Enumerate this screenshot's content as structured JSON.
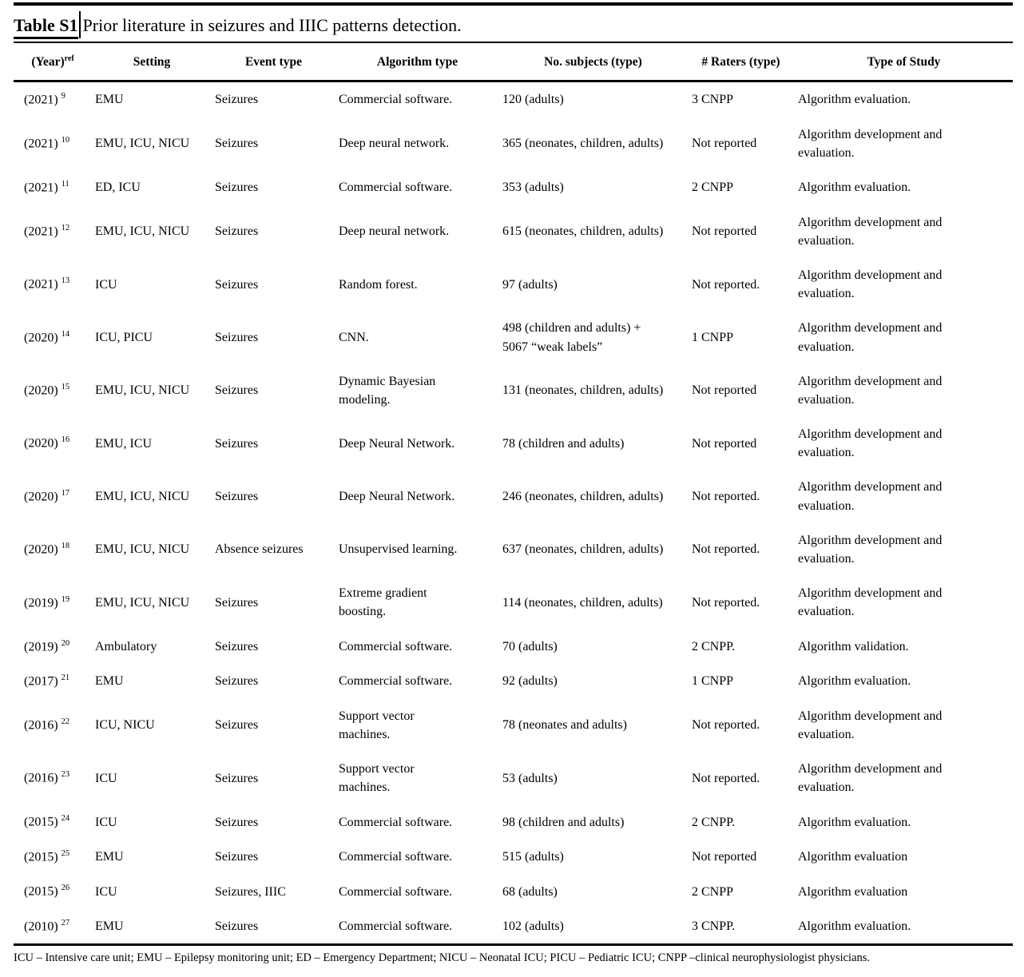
{
  "title": {
    "label": "Table S1",
    "text": "Prior literature in seizures and IIIC patterns detection."
  },
  "header": {
    "year_main": "(Year)",
    "year_sup": "ref",
    "cols": [
      "Setting",
      "Event type",
      "Algorithm type",
      "No. subjects (type)",
      "# Raters (type)",
      "Type of Study"
    ]
  },
  "rows": [
    {
      "year": "(2021)",
      "ref": "9",
      "setting": "EMU",
      "event": "Seizures",
      "algorithm": "Commercial software.",
      "subjects": "120 (adults)",
      "raters": "3 CNPP",
      "study": "Algorithm evaluation."
    },
    {
      "year": "(2021)",
      "ref": "10",
      "setting": "EMU, ICU, NICU",
      "event": "Seizures",
      "algorithm": "Deep neural network.",
      "subjects": "365 (neonates, children, adults)",
      "raters": "Not reported",
      "study": "Algorithm development and evaluation."
    },
    {
      "year": "(2021)",
      "ref": "11",
      "setting": "ED, ICU",
      "event": "Seizures",
      "algorithm": "Commercial software.",
      "subjects": "353 (adults)",
      "raters": "2 CNPP",
      "study": "Algorithm evaluation."
    },
    {
      "year": "(2021)",
      "ref": "12",
      "setting": "EMU, ICU, NICU",
      "event": "Seizures",
      "algorithm": "Deep neural network.",
      "subjects": "615 (neonates, children, adults)",
      "raters": "Not reported",
      "study": "Algorithm development and evaluation."
    },
    {
      "year": "(2021)",
      "ref": "13",
      "setting": "ICU",
      "event": "Seizures",
      "algorithm": "Random forest.",
      "subjects": "97 (adults)",
      "raters": "Not reported.",
      "study": "Algorithm development and evaluation."
    },
    {
      "year": "(2020)",
      "ref": "14",
      "setting": "ICU, PICU",
      "event": "Seizures",
      "algorithm": "CNN.",
      "subjects": "498 (children and adults) + 5067 “weak labels”",
      "raters": "1 CNPP",
      "study": "Algorithm development and evaluation."
    },
    {
      "year": "(2020)",
      "ref": "15",
      "setting": "EMU, ICU, NICU",
      "event": "Seizures",
      "algorithm": "Dynamic Bayesian modeling.",
      "subjects": "131 (neonates, children, adults)",
      "raters": "Not reported",
      "study": "Algorithm development and evaluation."
    },
    {
      "year": "(2020)",
      "ref": "16",
      "setting": "EMU, ICU",
      "event": "Seizures",
      "algorithm": "Deep Neural Network.",
      "subjects": "78 (children and adults)",
      "raters": "Not reported",
      "study": "Algorithm development and evaluation."
    },
    {
      "year": "(2020)",
      "ref": "17",
      "setting": "EMU, ICU, NICU",
      "event": "Seizures",
      "algorithm": "Deep Neural Network.",
      "subjects": "246 (neonates, children, adults)",
      "raters": "Not reported.",
      "study": "Algorithm development and evaluation."
    },
    {
      "year": "(2020)",
      "ref": "18",
      "setting": "EMU, ICU, NICU",
      "event": "Absence seizures",
      "algorithm": "Unsupervised learning.",
      "subjects": "637 (neonates, children, adults)",
      "raters": "Not reported.",
      "study": "Algorithm development and evaluation."
    },
    {
      "year": "(2019)",
      "ref": "19",
      "setting": "EMU, ICU, NICU",
      "event": "Seizures",
      "algorithm": "Extreme gradient boosting.",
      "subjects": "114 (neonates, children, adults)",
      "raters": "Not reported.",
      "study": "Algorithm development and evaluation."
    },
    {
      "year": "(2019)",
      "ref": "20",
      "setting": "Ambulatory",
      "event": "Seizures",
      "algorithm": "Commercial software.",
      "subjects": "70 (adults)",
      "raters": "2 CNPP.",
      "study": "Algorithm validation."
    },
    {
      "year": "(2017)",
      "ref": "21",
      "setting": "EMU",
      "event": "Seizures",
      "algorithm": "Commercial software.",
      "subjects": "92 (adults)",
      "raters": "1 CNPP",
      "study": "Algorithm evaluation."
    },
    {
      "year": "(2016)",
      "ref": "22",
      "setting": "ICU, NICU",
      "event": "Seizures",
      "algorithm": "Support vector machines.",
      "subjects": "78 (neonates and adults)",
      "raters": "Not reported.",
      "study": "Algorithm development and evaluation."
    },
    {
      "year": "(2016)",
      "ref": "23",
      "setting": "ICU",
      "event": "Seizures",
      "algorithm": "Support vector machines.",
      "subjects": "53 (adults)",
      "raters": "Not reported.",
      "study": "Algorithm development and evaluation."
    },
    {
      "year": "(2015)",
      "ref": "24",
      "setting": "ICU",
      "event": "Seizures",
      "algorithm": "Commercial software.",
      "subjects": "98 (children and adults)",
      "raters": "2 CNPP.",
      "study": "Algorithm evaluation."
    },
    {
      "year": "(2015)",
      "ref": "25",
      "setting": "EMU",
      "event": "Seizures",
      "algorithm": "Commercial software.",
      "subjects": "515 (adults)",
      "raters": "Not reported",
      "study": "Algorithm evaluation"
    },
    {
      "year": "(2015)",
      "ref": "26",
      "setting": "ICU",
      "event": "Seizures, IIIC",
      "algorithm": "Commercial software.",
      "subjects": "68 (adults)",
      "raters": "2 CNPP",
      "study": "Algorithm evaluation"
    },
    {
      "year": "(2010)",
      "ref": "27",
      "setting": "EMU",
      "event": "Seizures",
      "algorithm": "Commercial software.",
      "subjects": "102 (adults)",
      "raters": "3 CNPP.",
      "study": "Algorithm evaluation."
    }
  ],
  "footnote": "ICU – Intensive care unit; EMU – Epilepsy monitoring unit; ED – Emergency Department; NICU – Neonatal ICU; PICU – Pediatric ICU; CNPP –clinical neurophysiologist physicians.",
  "colors": {
    "text": "#000000",
    "background": "#ffffff",
    "rule": "#000000"
  }
}
